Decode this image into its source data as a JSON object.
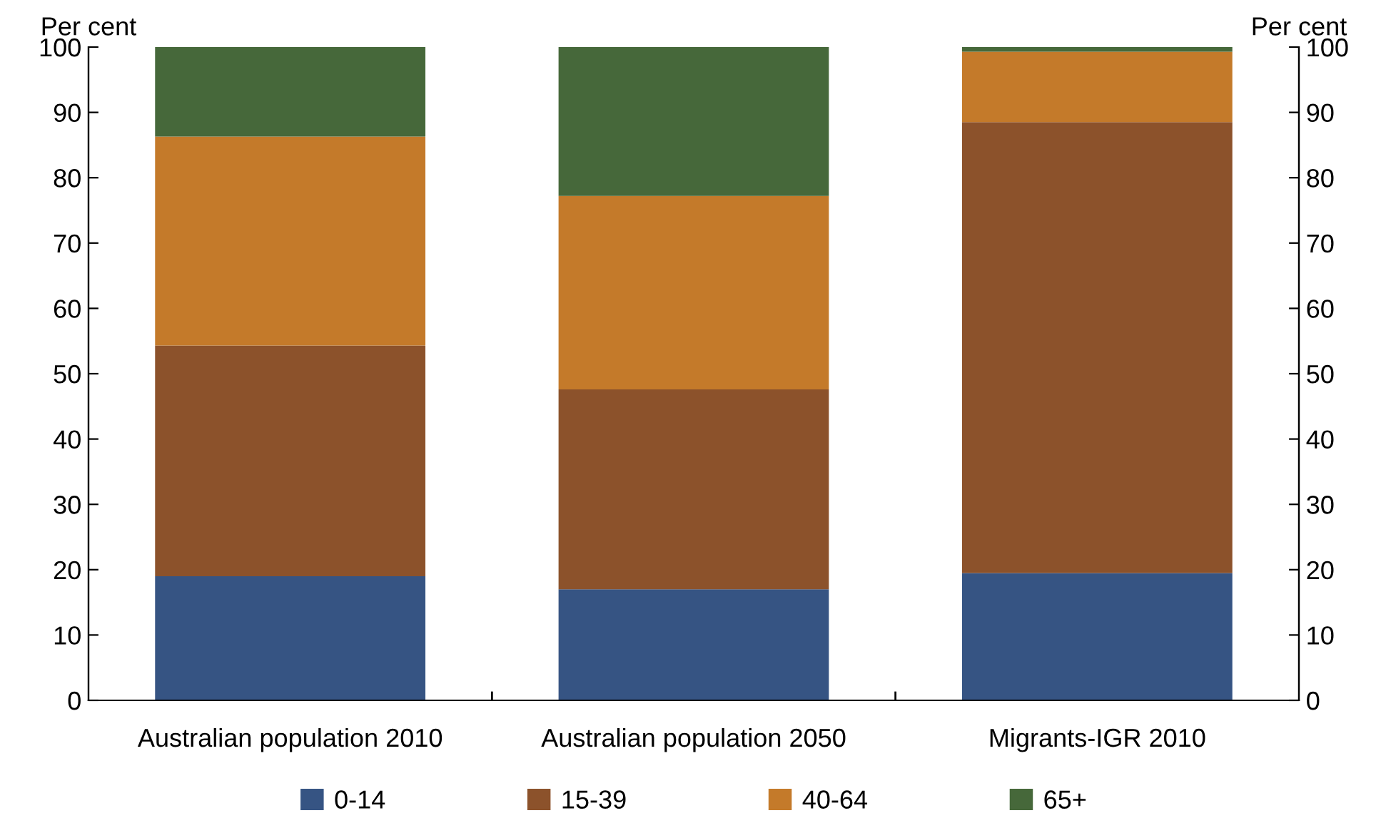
{
  "chart_data": {
    "type": "bar",
    "stacked": true,
    "categories": [
      "Australian population 2010",
      "Australian population 2050",
      "Migrants-IGR 2010"
    ],
    "series": [
      {
        "name": "0-14",
        "color": "#365483",
        "values": [
          19.0,
          17.0,
          19.5
        ]
      },
      {
        "name": "15-39",
        "color": "#8c522b",
        "values": [
          35.3,
          30.6,
          69.0
        ]
      },
      {
        "name": "40-64",
        "color": "#c47a2a",
        "values": [
          32.0,
          29.6,
          10.8
        ]
      },
      {
        "name": "65+",
        "color": "#46683a",
        "values": [
          13.7,
          22.8,
          0.7
        ]
      }
    ],
    "ylabel": "Per cent",
    "y2label": "Per cent",
    "ylim": [
      0,
      100
    ],
    "yticks": [
      0,
      10,
      20,
      30,
      40,
      50,
      60,
      70,
      80,
      90,
      100
    ],
    "y2lim": [
      0,
      100
    ],
    "y2ticks": [
      0,
      10,
      20,
      30,
      40,
      50,
      60,
      70,
      80,
      90,
      100
    ],
    "legend": "bottom",
    "grid": false
  }
}
